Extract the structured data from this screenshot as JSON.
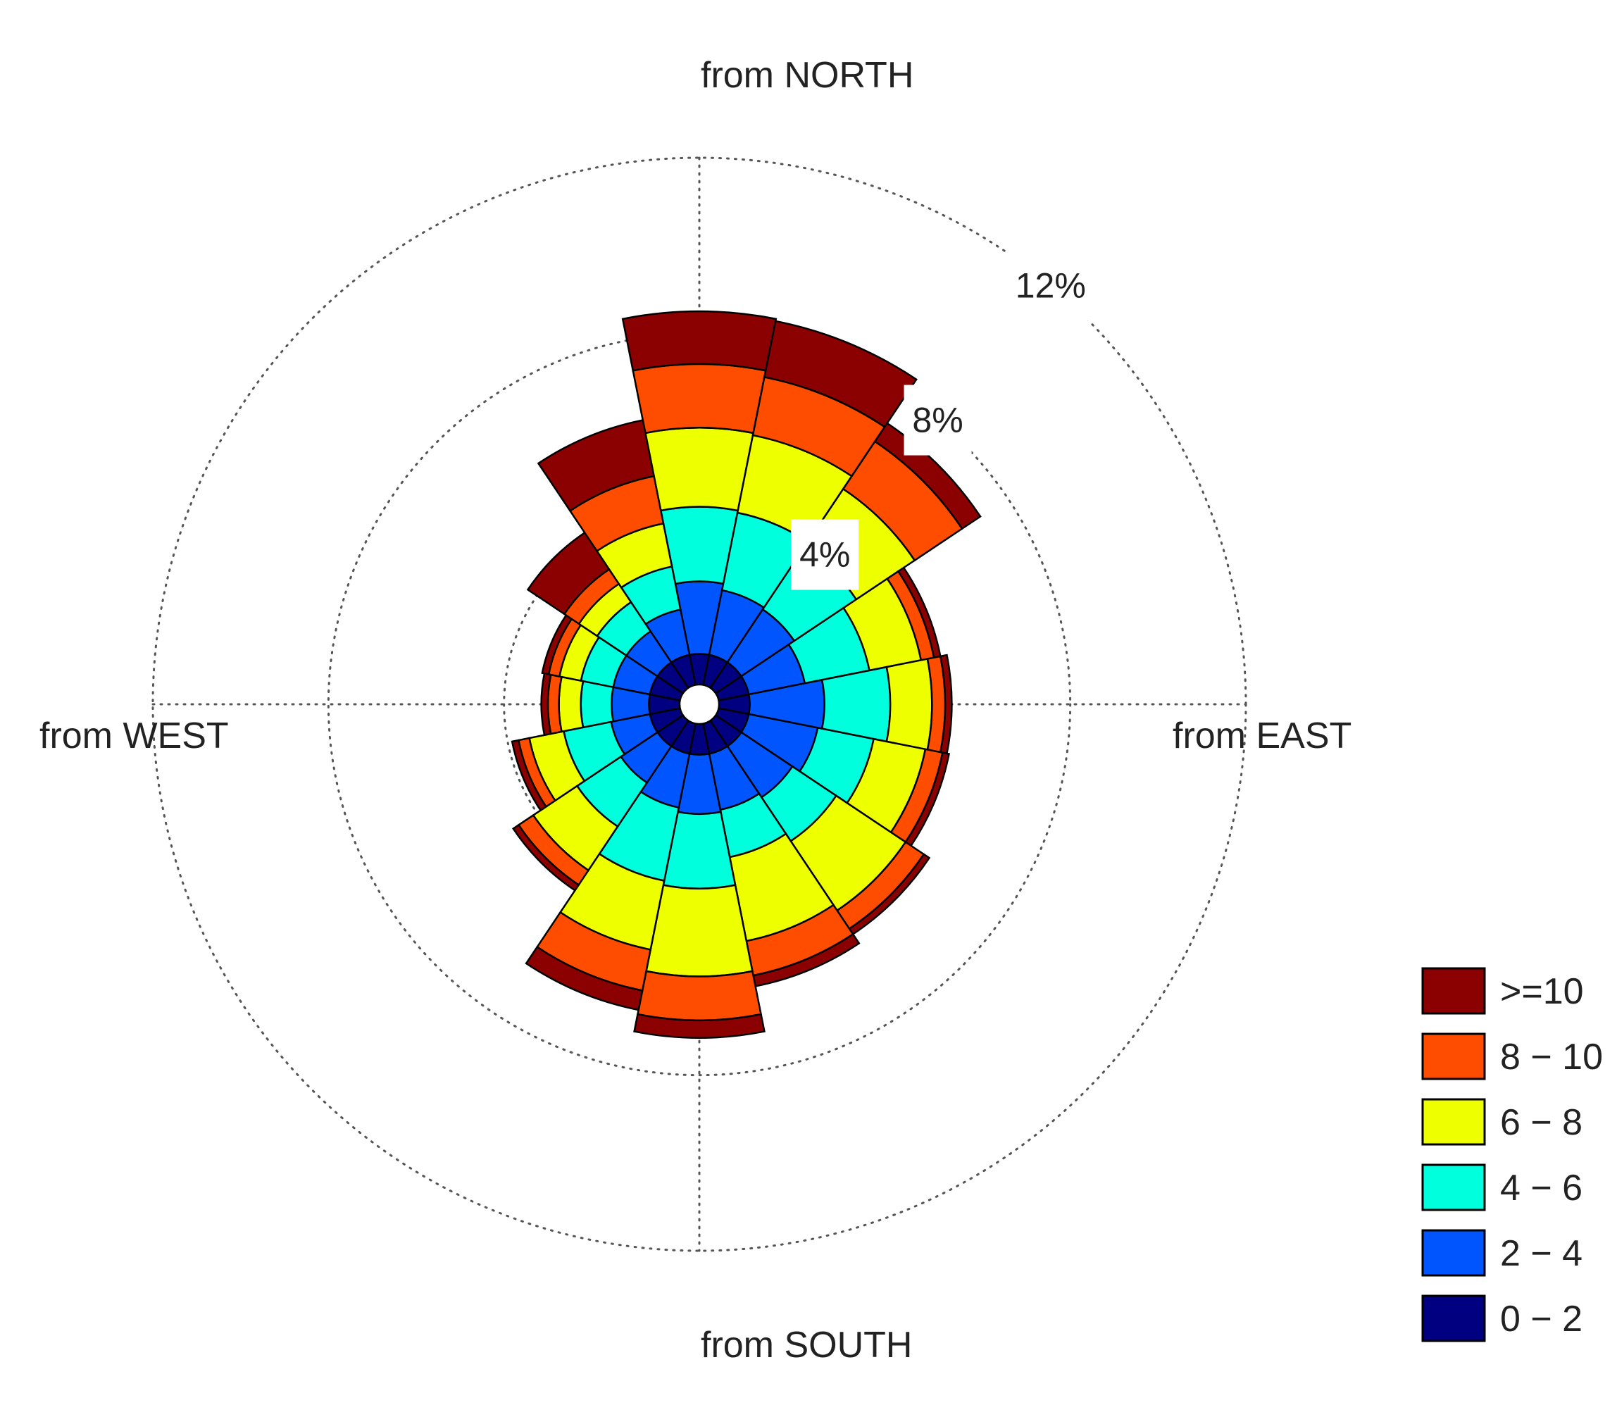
{
  "chart_data": {
    "type": "wind-rose",
    "direction_labels": {
      "north": "from NORTH",
      "east": "from EAST",
      "south": "from SOUTH",
      "west": "from WEST"
    },
    "radial_ticks": [
      {
        "value": 4,
        "label": "4%"
      },
      {
        "value": 8,
        "label": "8%"
      },
      {
        "value": 12,
        "label": "12%"
      }
    ],
    "radial_max": 12,
    "n_sectors": 16,
    "sector_direction_deg": [
      0,
      22.5,
      45,
      67.5,
      90,
      112.5,
      135,
      157.5,
      180,
      202.5,
      225,
      247.5,
      270,
      292.5,
      315,
      337.5
    ],
    "speed_bins": [
      {
        "label": "0 − 2",
        "color": "#000080"
      },
      {
        "label": "2 − 4",
        "color": "#0055ff"
      },
      {
        "label": "4 − 6",
        "color": "#00ffdd"
      },
      {
        "label": "6 − 8",
        "color": "#eeff00"
      },
      {
        "label": "8 − 10",
        "color": "#ff4d00"
      },
      {
        "label": ">=10",
        "color": "#8b0000"
      }
    ],
    "series": [
      {
        "name": "0 − 2",
        "values": [
          0.7,
          0.7,
          0.7,
          0.7,
          0.7,
          0.7,
          0.7,
          0.7,
          0.7,
          0.7,
          0.7,
          0.7,
          0.7,
          0.7,
          0.7,
          0.7
        ]
      },
      {
        "name": "2 − 4",
        "values": [
          1.65,
          1.5,
          1.45,
          1.3,
          1.7,
          1.6,
          1.4,
          1.3,
          1.35,
          1.25,
          1.0,
          0.9,
          0.85,
          0.85,
          0.85,
          1.05
        ]
      },
      {
        "name": "4 - 6",
        "values": [
          1.7,
          1.8,
          1.7,
          1.5,
          1.5,
          1.3,
          1.2,
          1.1,
          1.7,
          1.7,
          1.2,
          1.1,
          0.7,
          0.75,
          0.8,
          1.0
        ]
      },
      {
        "name": "6 - 8",
        "values": [
          1.8,
          1.8,
          1.6,
          1.2,
          0.95,
          1.2,
          1.9,
          1.95,
          2.0,
          1.6,
          1.2,
          0.8,
          0.5,
          0.5,
          0.5,
          1.0
        ]
      },
      {
        "name": "8 - 10",
        "values": [
          1.45,
          1.35,
          1.3,
          0.3,
          0.3,
          0.4,
          0.5,
          0.8,
          1.0,
          0.95,
          0.4,
          0.25,
          0.25,
          0.25,
          0.4,
          1.1
        ]
      },
      {
        "name": ">=10",
        "values": [
          1.2,
          1.3,
          0.5,
          0.15,
          0.15,
          0.15,
          0.15,
          0.25,
          0.4,
          0.45,
          0.15,
          0.15,
          0.15,
          0.15,
          1.0,
          1.3
        ]
      }
    ]
  }
}
